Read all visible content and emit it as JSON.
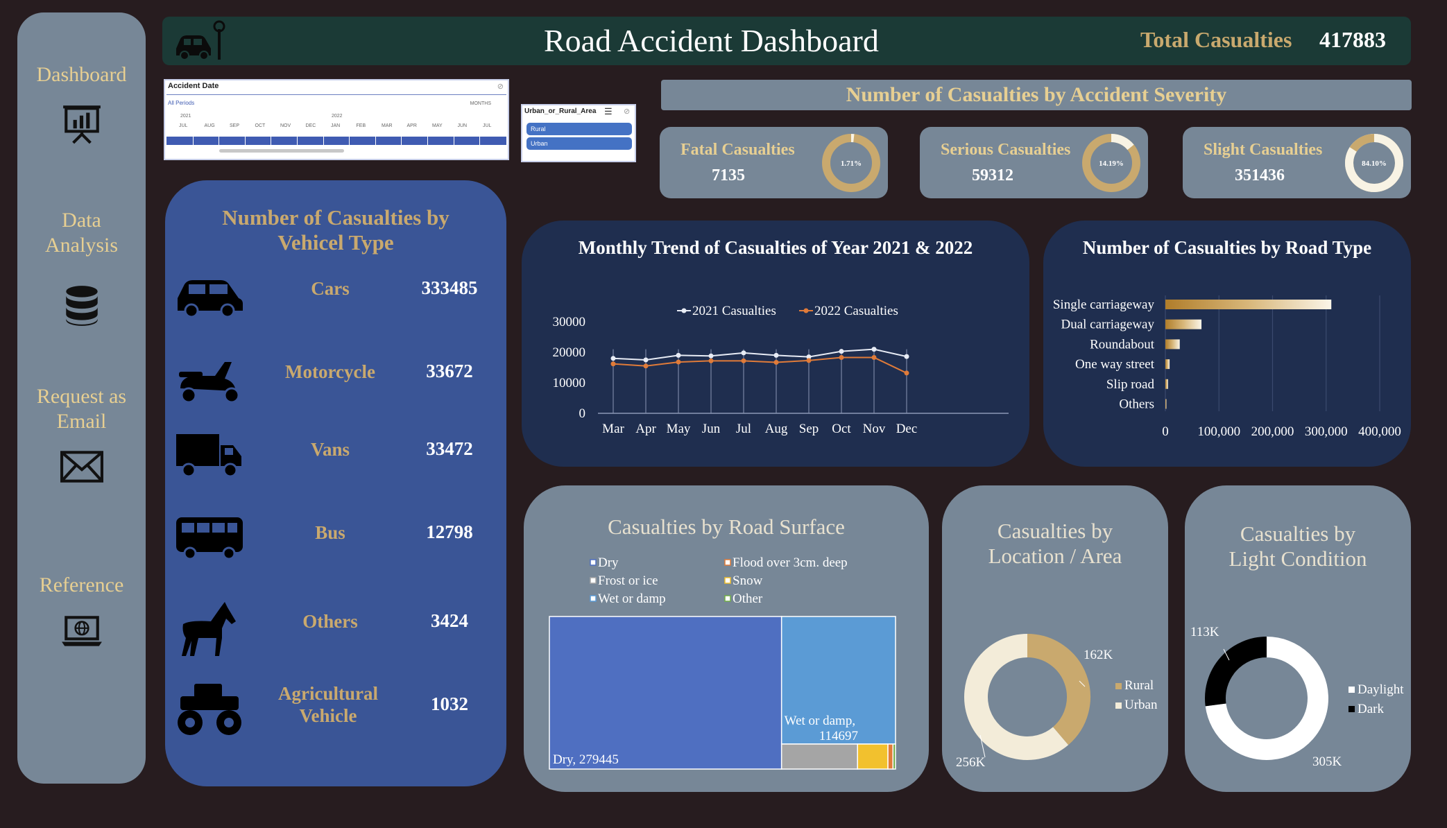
{
  "header": {
    "title": "Road Accident Dashboard",
    "total_label": "Total Casualties",
    "total_value": "417883"
  },
  "sidebar": {
    "items": [
      {
        "label": "Dashboard",
        "icon": "presentation-chart-icon"
      },
      {
        "label": "Data Analysis",
        "icon": "database-icon"
      },
      {
        "label": "Request as Email",
        "icon": "envelope-icon"
      },
      {
        "label": "Reference",
        "icon": "laptop-globe-icon"
      }
    ]
  },
  "date_slicer": {
    "title": "Accident Date",
    "period": "All Periods",
    "unit": "MONTHS",
    "years": [
      "2021",
      "2022"
    ],
    "months": [
      "JUL",
      "AUG",
      "SEP",
      "OCT",
      "NOV",
      "DEC",
      "JAN",
      "FEB",
      "MAR",
      "APR",
      "MAY",
      "JUN",
      "JUL"
    ]
  },
  "area_slicer": {
    "title": "Urban_or_Rural_Area",
    "options": [
      "Rural",
      "Urban"
    ]
  },
  "severity": {
    "banner": "Number of Casualties by Accident Severity",
    "cards": [
      {
        "label": "Fatal Casualties",
        "value": "7135",
        "pct": "1.71%",
        "fraction": 0.0171
      },
      {
        "label": "Serious Casualties",
        "value": "59312",
        "pct": "14.19%",
        "fraction": 0.1419
      },
      {
        "label": "Slight Casualties",
        "value": "351436",
        "pct": "84.10%",
        "fraction": 0.841
      }
    ]
  },
  "vehicles": {
    "title_line1": "Number of Casualties by",
    "title_line2": "Vehicel Type",
    "rows": [
      {
        "name": "Cars",
        "value": "333485",
        "icon": "car-icon"
      },
      {
        "name": "Motorcycle",
        "value": "33672",
        "icon": "scooter-icon"
      },
      {
        "name": "Vans",
        "value": "33472",
        "icon": "truck-icon"
      },
      {
        "name": "Bus",
        "value": "12798",
        "icon": "bus-icon"
      },
      {
        "name": "Others",
        "value": "3424",
        "icon": "horse-icon"
      },
      {
        "name": "Agricultural Vehicle",
        "value": "1032",
        "icon": "tractor-icon"
      }
    ]
  },
  "colors": {
    "gold": "#c9a96e",
    "navy": "#1f2e4f",
    "slate": "#778797",
    "vehicle_panel": "#3a5596",
    "orange": "#e07b39"
  },
  "chart_data": [
    {
      "type": "line",
      "title": "Monthly Trend of Casualties of Year 2021 & 2022",
      "categories": [
        "Mar",
        "Apr",
        "May",
        "Jun",
        "Jul",
        "Aug",
        "Sep",
        "Oct",
        "Nov",
        "Dec"
      ],
      "series": [
        {
          "name": "2021 Casualties",
          "values": [
            18000,
            17500,
            19000,
            18800,
            19800,
            19000,
            18500,
            20300,
            21000,
            18600
          ]
        },
        {
          "name": "2022 Casualties",
          "values": [
            16200,
            15500,
            16800,
            17200,
            17200,
            16700,
            17300,
            18300,
            18300,
            13200
          ]
        }
      ],
      "yticks": [
        0,
        10000,
        20000,
        30000
      ],
      "ylim": [
        0,
        30000
      ],
      "grid": "vertical",
      "legend": "top"
    },
    {
      "type": "bar",
      "orientation": "horizontal",
      "title": "Number of Casualties by Road Type",
      "categories": [
        "Single carriageway",
        "Dual carriageway",
        "Roundabout",
        "One way street",
        "Slip road",
        "Others"
      ],
      "values": [
        309698,
        67373,
        26828,
        7900,
        5000,
        1300
      ],
      "xticks": [
        "0",
        "100,000",
        "200,000",
        "300,000",
        "400,000"
      ],
      "xlim": [
        0,
        400000
      ],
      "grid": "vertical"
    },
    {
      "type": "treemap",
      "title": "Casualties by Road Surface",
      "legend": [
        "Dry",
        "Flood over 3cm. deep",
        "Frost or ice",
        "Snow",
        "Wet or damp",
        "Other"
      ],
      "items": [
        {
          "name": "Dry",
          "value": 279445,
          "label": "Dry, 279445"
        },
        {
          "name": "Wet or damp",
          "value": 114697,
          "label_line1": "Wet or damp,",
          "label_line2": "114697"
        },
        {
          "name": "Frost or ice",
          "value": 15000
        },
        {
          "name": "Snow",
          "value": 6000
        },
        {
          "name": "Flood over 3cm. deep",
          "value": 1000
        },
        {
          "name": "Other",
          "value": 500
        }
      ]
    },
    {
      "type": "pie",
      "title_line1": "Casualties by",
      "title_line2": "Location / Area",
      "series": [
        {
          "name": "Rural",
          "value": 162,
          "label": "162K"
        },
        {
          "name": "Urban",
          "value": 256,
          "label": "256K"
        }
      ]
    },
    {
      "type": "pie",
      "title_line1": "Casualties by",
      "title_line2": "Light Condition",
      "series": [
        {
          "name": "Daylight",
          "value": 305,
          "label": "305K"
        },
        {
          "name": "Dark",
          "value": 113,
          "label": "113K"
        }
      ]
    }
  ]
}
